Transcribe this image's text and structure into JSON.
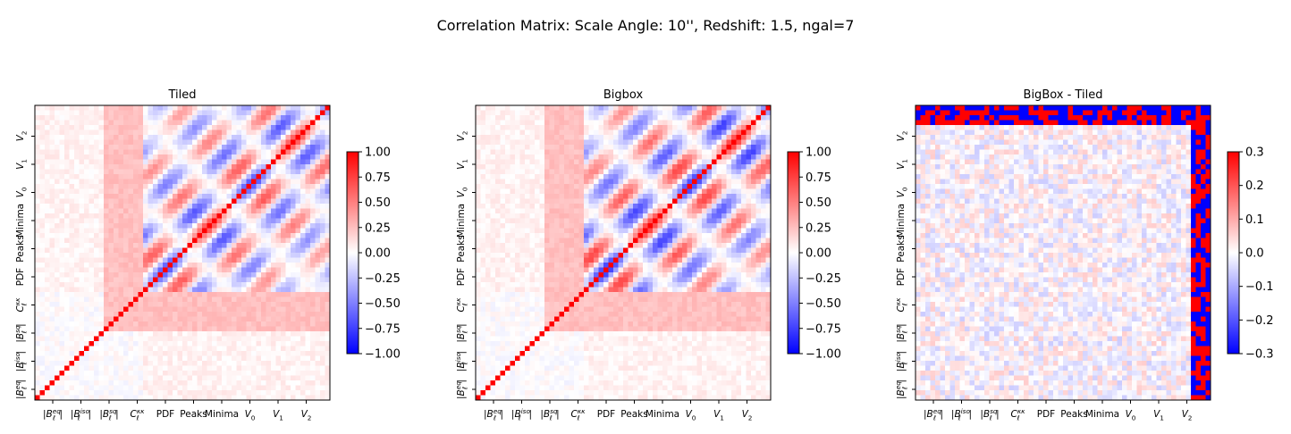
{
  "figure": {
    "title": "Correlation Matrix: Scale Angle: 10'', Redshift: 1.5, ngal=7"
  },
  "colors": {
    "cmap": "bwr",
    "low": "#0000ff",
    "mid": "#ffffff",
    "high": "#ff0000",
    "frame": "#000000"
  },
  "chart_data": [
    {
      "type": "heatmap",
      "title": "Tiled",
      "xlabel": "",
      "ylabel": "",
      "x_tick_labels": [
        "|B_ℓ^eq|",
        "|B_ℓ^iso|",
        "|B_ℓ^sq|",
        "C_ℓ^κκ",
        "PDF",
        "Peaks",
        "Minima",
        "V_0",
        "V_1",
        "V_2"
      ],
      "y_tick_labels": [
        "|B_ℓ^eq|",
        "|B_ℓ^iso|",
        "|B_ℓ^sq|",
        "C_ℓ^κκ",
        "PDF",
        "Peaks",
        "Minima",
        "V_0",
        "V_1",
        "V_2"
      ],
      "colorbar": {
        "min": -1.0,
        "max": 1.0,
        "ticks": [
          1.0,
          0.75,
          0.5,
          0.25,
          0.0,
          -0.25,
          -0.5,
          -0.75,
          -1.0
        ],
        "tick_labels": [
          "1.00",
          "0.75",
          "0.50",
          "0.25",
          "0.00",
          "−0.25",
          "−0.50",
          "−0.75",
          "−1.00"
        ]
      },
      "diagonal": 1.0,
      "summary": "Identity diagonal; strong positive/negative correlation blocks among PDF, Peaks, Minima, V0, V1, V2; weak positive correlations between C_ell and other statistics."
    },
    {
      "type": "heatmap",
      "title": "Bigbox",
      "xlabel": "",
      "ylabel": "",
      "x_tick_labels": [
        "|B_ℓ^eq|",
        "|B_ℓ^iso|",
        "|B_ℓ^sq|",
        "C_ℓ^κκ",
        "PDF",
        "Peaks",
        "Minima",
        "V_0",
        "V_1",
        "V_2"
      ],
      "y_tick_labels": [
        "|B_ℓ^eq|",
        "|B_ℓ^iso|",
        "|B_ℓ^sq|",
        "C_ℓ^κκ",
        "PDF",
        "Peaks",
        "Minima",
        "V_0",
        "V_1",
        "V_2"
      ],
      "colorbar": {
        "min": -1.0,
        "max": 1.0,
        "ticks": [
          1.0,
          0.75,
          0.5,
          0.25,
          0.0,
          -0.25,
          -0.5,
          -0.75,
          -1.0
        ],
        "tick_labels": [
          "1.00",
          "0.75",
          "0.50",
          "0.25",
          "0.00",
          "−0.25",
          "−0.50",
          "−0.75",
          "−1.00"
        ]
      },
      "diagonal": 1.0,
      "summary": "Same block structure as Tiled with slightly stronger off-diagonal correlations."
    },
    {
      "type": "heatmap",
      "title": "BigBox - Tiled",
      "xlabel": "",
      "ylabel": "",
      "x_tick_labels": [
        "|B_ℓ^eq|",
        "|B_ℓ^iso|",
        "|B_ℓ^sq|",
        "C_ℓ^κκ",
        "PDF",
        "Peaks",
        "Minima",
        "V_0",
        "V_1",
        "V_2"
      ],
      "y_tick_labels": [
        "|B_ℓ^eq|",
        "|B_ℓ^iso|",
        "|B_ℓ^sq|",
        "C_ℓ^κκ",
        "PDF",
        "Peaks",
        "Minima",
        "V_0",
        "V_1",
        "V_2"
      ],
      "colorbar": {
        "min": -0.3,
        "max": 0.3,
        "ticks": [
          0.3,
          0.2,
          0.1,
          0.0,
          -0.1,
          -0.2,
          -0.3
        ],
        "tick_labels": [
          "0.3",
          "0.2",
          "0.1",
          "0.0",
          "−0.1",
          "−0.2",
          "−0.3"
        ]
      },
      "diagonal": 0.0,
      "summary": "Mostly small differences (|Δ| < 0.1) with strong differences along the last few V_2 rows/columns."
    }
  ]
}
